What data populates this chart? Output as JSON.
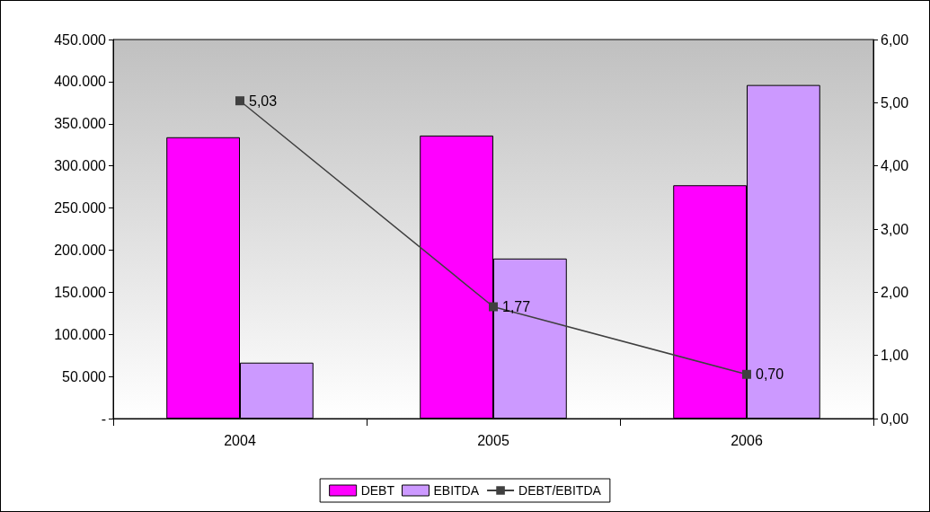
{
  "chart_data": {
    "type": "bar",
    "categories": [
      "2004",
      "2005",
      "2006"
    ],
    "series": [
      {
        "name": "DEBT",
        "color": "#ff00ff",
        "values": [
          334000,
          336000,
          277000
        ]
      },
      {
        "name": "EBITDA",
        "color": "#cc99ff",
        "values": [
          66400,
          190000,
          396000
        ]
      },
      {
        "name": "DEBT/EBITDA",
        "type": "line",
        "axis": "y2",
        "color": "#404040",
        "values": [
          5.03,
          1.77,
          0.7
        ],
        "value_labels": [
          "5,03",
          "1,77",
          "0,70"
        ]
      }
    ],
    "ylim": [
      0,
      450000
    ],
    "yticks": [
      {
        "value": 0,
        "label": "-"
      },
      {
        "value": 50000,
        "label": "50.000"
      },
      {
        "value": 100000,
        "label": "100.000"
      },
      {
        "value": 150000,
        "label": "150.000"
      },
      {
        "value": 200000,
        "label": "200.000"
      },
      {
        "value": 250000,
        "label": "250.000"
      },
      {
        "value": 300000,
        "label": "300.000"
      },
      {
        "value": 350000,
        "label": "350.000"
      },
      {
        "value": 400000,
        "label": "400.000"
      },
      {
        "value": 450000,
        "label": "450.000"
      }
    ],
    "y2lim": [
      0,
      6
    ],
    "y2ticks": [
      {
        "value": 0,
        "label": "0,00"
      },
      {
        "value": 1,
        "label": "1,00"
      },
      {
        "value": 2,
        "label": "2,00"
      },
      {
        "value": 3,
        "label": "3,00"
      },
      {
        "value": 4,
        "label": "4,00"
      },
      {
        "value": 5,
        "label": "5,00"
      },
      {
        "value": 6,
        "label": "6,00"
      }
    ],
    "grid": false,
    "legend": "bottom",
    "marker": "square",
    "line_style": "solid"
  }
}
